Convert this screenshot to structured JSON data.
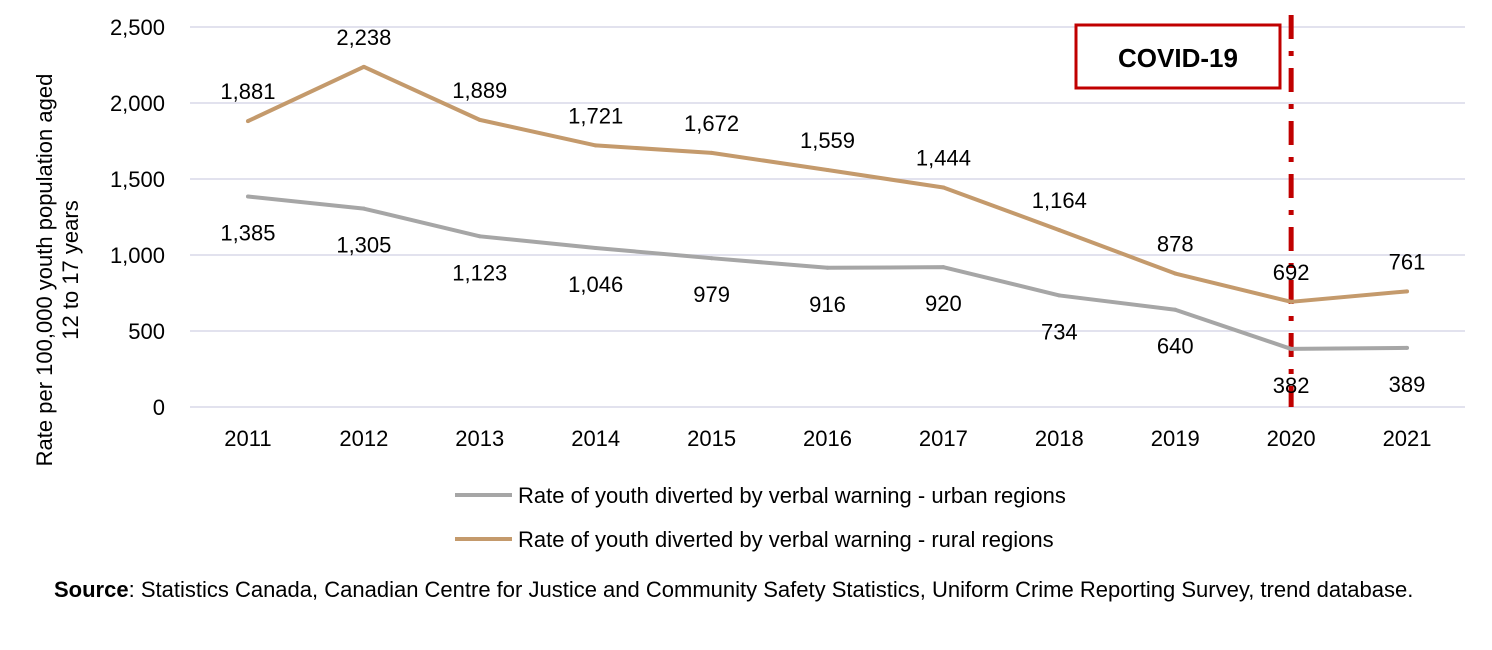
{
  "chart_data": {
    "type": "line",
    "categories": [
      "2011",
      "2012",
      "2013",
      "2014",
      "2015",
      "2016",
      "2017",
      "2018",
      "2019",
      "2020",
      "2021"
    ],
    "series": [
      {
        "name": "Rate of youth diverted by verbal warning - urban regions",
        "color": "#A6A6A6",
        "values": [
          1385,
          1305,
          1123,
          1046,
          979,
          916,
          920,
          734,
          640,
          382,
          389
        ],
        "labels": [
          "1,385",
          "1,305",
          "1,123",
          "1,046",
          "979",
          "916",
          "920",
          "734",
          "640",
          "382",
          "389"
        ]
      },
      {
        "name": "Rate of youth diverted by verbal warning - rural regions",
        "color": "#C49A6C",
        "values": [
          1881,
          2238,
          1889,
          1721,
          1672,
          1559,
          1444,
          1164,
          878,
          692,
          761
        ],
        "labels": [
          "1,881",
          "2,238",
          "1,889",
          "1,721",
          "1,672",
          "1,559",
          "1,444",
          "1,164",
          "878",
          "692",
          "761"
        ]
      }
    ],
    "ylabel": "Rate per 100,000 youth population aged 12 to 17 years",
    "ylabel_lines": [
      "Rate per 100,000 youth population aged",
      "12 to 17 years"
    ],
    "xlabel": "",
    "ylim": [
      0,
      2500
    ],
    "yticks": [
      0,
      500,
      1000,
      1500,
      2000,
      2500
    ],
    "ytick_labels": [
      "0",
      "500",
      "1,000",
      "1,500",
      "2,000",
      "2,500"
    ],
    "grid": true,
    "legend_placement": "bottom",
    "annotation": {
      "text": "COVID-19",
      "at_category": "2020",
      "color": "#C00000"
    }
  },
  "source": {
    "label": "Source",
    "text": ": Statistics Canada, Canadian Centre for Justice and Community Safety Statistics, Uniform Crime Reporting Survey, trend database."
  }
}
